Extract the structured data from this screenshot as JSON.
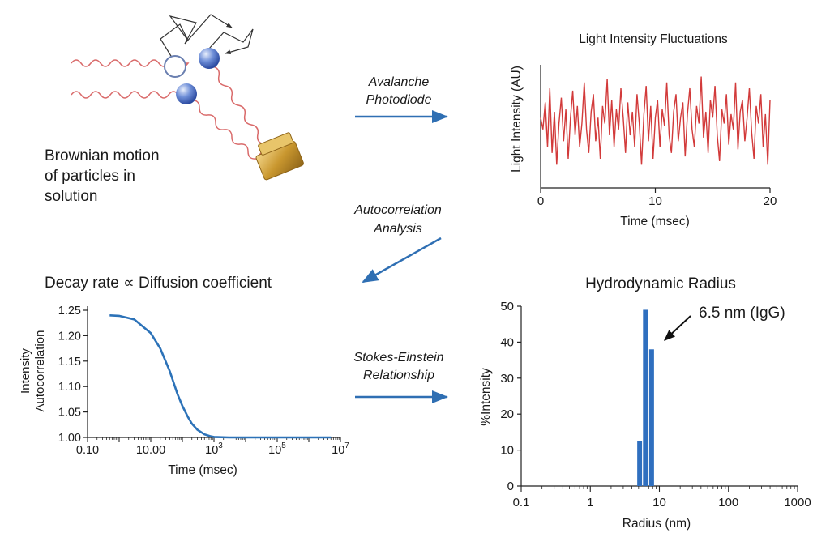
{
  "panels": {
    "brownian": {
      "caption": [
        "Brownian motion",
        "of particles in",
        "solution"
      ]
    },
    "step_avalanche": {
      "label": [
        "Avalanche",
        "Photodiode"
      ]
    },
    "step_autocorr": {
      "label": [
        "Autocorrelation",
        "Analysis"
      ]
    },
    "step_stokes": {
      "label": [
        "Stokes-Einstein",
        "Relationship"
      ]
    }
  },
  "chart_data": [
    {
      "id": "fluctuations",
      "type": "line",
      "title": "Light Intensity Fluctuations",
      "xlabel": "Time (msec)",
      "ylabel": "Light Intensity (AU)",
      "xlim": [
        0,
        20
      ],
      "xticks": [
        "0",
        "10",
        "20"
      ],
      "y_ticks_shown": false,
      "series": [
        {
          "color": "#d23a3a",
          "x": [
            0.0,
            0.2,
            0.4,
            0.6,
            0.8,
            1.0,
            1.2,
            1.4,
            1.6,
            1.8,
            2.0,
            2.2,
            2.4,
            2.6,
            2.8,
            3.0,
            3.2,
            3.4,
            3.6,
            3.8,
            4.0,
            4.2,
            4.4,
            4.6,
            4.8,
            5.0,
            5.2,
            5.4,
            5.6,
            5.8,
            6.0,
            6.2,
            6.4,
            6.6,
            6.8,
            7.0,
            7.2,
            7.4,
            7.6,
            7.8,
            8.0,
            8.2,
            8.4,
            8.6,
            8.8,
            9.0,
            9.2,
            9.4,
            9.6,
            9.8,
            10.0,
            10.2,
            10.4,
            10.6,
            10.8,
            11.0,
            11.2,
            11.4,
            11.6,
            11.8,
            12.0,
            12.2,
            12.4,
            12.6,
            12.8,
            13.0,
            13.2,
            13.4,
            13.6,
            13.8,
            14.0,
            14.2,
            14.4,
            14.6,
            14.8,
            15.0,
            15.2,
            15.4,
            15.6,
            15.8,
            16.0,
            16.2,
            16.4,
            16.6,
            16.8,
            17.0,
            17.2,
            17.4,
            17.6,
            17.8,
            18.0,
            18.2,
            18.4,
            18.6,
            18.8,
            19.0,
            19.2,
            19.4,
            19.6,
            19.8,
            20.0
          ],
          "y": [
            0.55,
            0.45,
            0.68,
            0.3,
            0.8,
            0.25,
            0.6,
            0.15,
            0.5,
            0.72,
            0.35,
            0.62,
            0.2,
            0.55,
            0.78,
            0.4,
            0.65,
            0.3,
            0.5,
            0.85,
            0.45,
            0.25,
            0.6,
            0.75,
            0.35,
            0.55,
            0.2,
            0.65,
            0.5,
            0.88,
            0.4,
            0.7,
            0.3,
            0.62,
            0.45,
            0.8,
            0.55,
            0.25,
            0.68,
            0.4,
            0.6,
            0.3,
            0.75,
            0.5,
            0.15,
            0.58,
            0.82,
            0.35,
            0.65,
            0.2,
            0.55,
            0.7,
            0.3,
            0.62,
            0.48,
            0.85,
            0.4,
            0.25,
            0.6,
            0.75,
            0.35,
            0.55,
            0.68,
            0.22,
            0.58,
            0.8,
            0.45,
            0.3,
            0.65,
            0.5,
            0.9,
            0.38,
            0.6,
            0.25,
            0.7,
            0.55,
            0.82,
            0.4,
            0.18,
            0.62,
            0.5,
            0.75,
            0.32,
            0.58,
            0.45,
            0.85,
            0.28,
            0.6,
            0.7,
            0.35,
            0.55,
            0.8,
            0.42,
            0.2,
            0.65,
            0.5,
            0.75,
            0.3,
            0.58,
            0.15,
            0.7
          ]
        }
      ]
    },
    {
      "id": "autocorrelation",
      "type": "line",
      "title": "Decay rate ∝ Diffusion coefficient",
      "xlabel": "Time (msec)",
      "ylabel": [
        "Intensity",
        "Autocorrelation"
      ],
      "x_scale": "log",
      "xlim": [
        0.1,
        10000000
      ],
      "ylim": [
        1.0,
        1.25
      ],
      "xticks": [
        {
          "value": 0.1,
          "base": "0.10",
          "sup": ""
        },
        {
          "value": 10,
          "base": "10.00",
          "sup": ""
        },
        {
          "value": 1000,
          "base": "10",
          "sup": "3"
        },
        {
          "value": 100000,
          "base": "10",
          "sup": "5"
        },
        {
          "value": 10000000,
          "base": "10",
          "sup": "7"
        }
      ],
      "yticks": [
        "1.00",
        "1.05",
        "1.10",
        "1.15",
        "1.20",
        "1.25"
      ],
      "series": [
        {
          "color": "#2c72b8",
          "x": [
            0.5,
            1,
            3,
            10,
            20,
            40,
            70,
            100,
            150,
            200,
            300,
            500,
            800,
            1000,
            3000,
            10000,
            100000,
            1000000,
            5000000
          ],
          "y": [
            1.24,
            1.239,
            1.232,
            1.205,
            1.175,
            1.13,
            1.085,
            1.062,
            1.04,
            1.027,
            1.015,
            1.006,
            1.002,
            1.001,
            1.0,
            1.0,
            1.0,
            1.0,
            1.0
          ]
        }
      ]
    },
    {
      "id": "hydrodynamic",
      "type": "bar",
      "title": "Hydrodynamic Radius",
      "xlabel": "Radius (nm)",
      "ylabel": "%Intensity",
      "x_scale": "log",
      "xlim": [
        0.1,
        1000
      ],
      "ylim": [
        0,
        50
      ],
      "xticks": [
        "0.1",
        "1",
        "10",
        "100",
        "1000"
      ],
      "yticks": [
        "0",
        "10",
        "20",
        "30",
        "40",
        "50"
      ],
      "bins": [
        {
          "from": 4.7,
          "to": 5.7,
          "value": 12.5
        },
        {
          "from": 5.7,
          "to": 7.0,
          "value": 49
        },
        {
          "from": 7.0,
          "to": 8.5,
          "value": 38
        }
      ],
      "bar_color": "#2f6fbf",
      "annotation": "6.5 nm (IgG)"
    }
  ]
}
